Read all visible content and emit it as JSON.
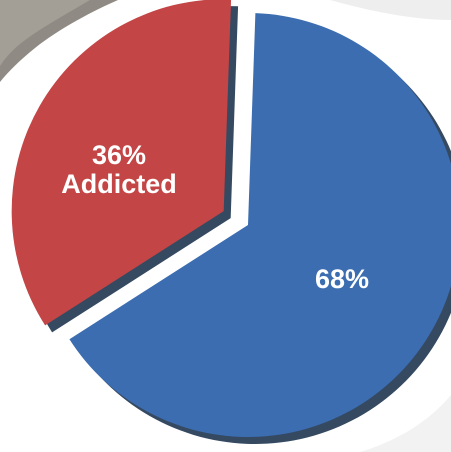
{
  "chart_data": {
    "type": "pie",
    "title": "",
    "slices": [
      {
        "label_value": "68%",
        "label_text": "",
        "value": 68,
        "color": "#3b6db0",
        "exploded": false
      },
      {
        "label_value": "36%",
        "label_text": "Addicted",
        "value": 36,
        "color": "#c34545",
        "exploded": true
      }
    ],
    "legend": "none"
  }
}
